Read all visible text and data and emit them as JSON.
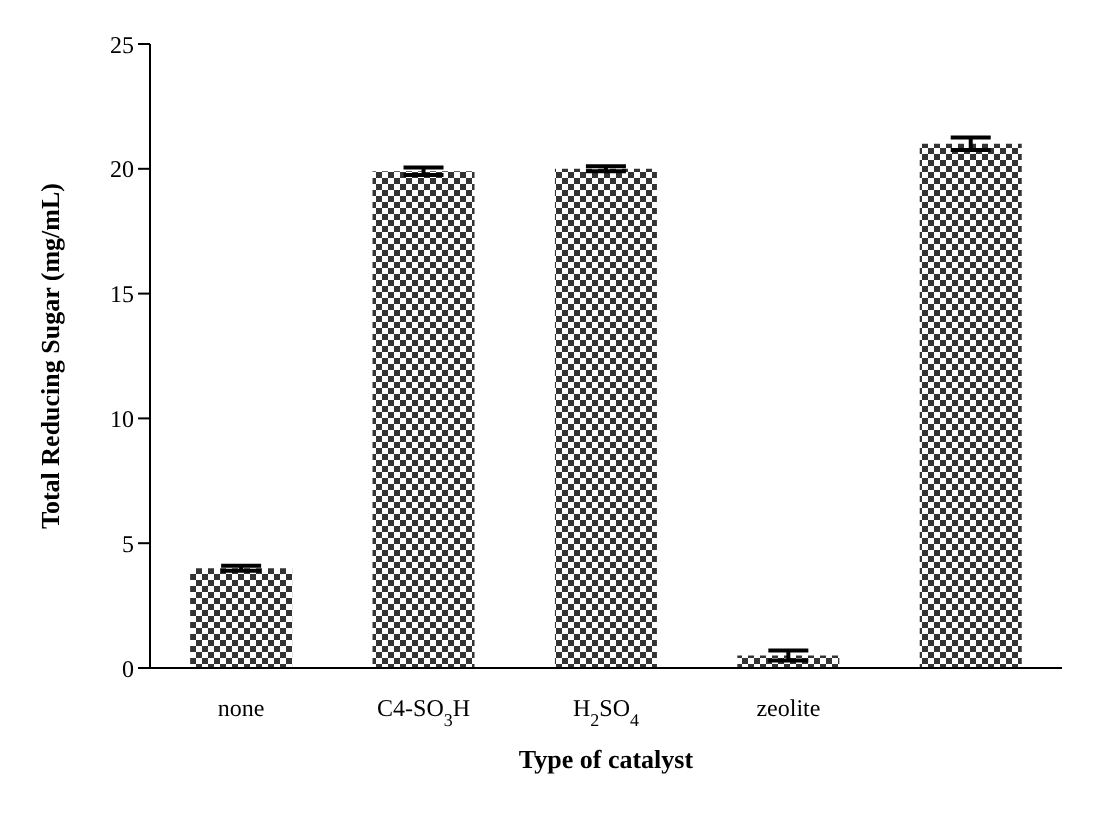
{
  "chart_data": {
    "type": "bar",
    "xlabel": "Type of catalyst",
    "ylabel": "Total Reducing Sugar (mg/mL)",
    "categories": [
      "none",
      "C4-SO$_{3}$H",
      "H$_{2}$SO$_{4}$",
      "zeolite",
      null
    ],
    "values": [
      4.0,
      19.9,
      20.0,
      0.5,
      21.0
    ],
    "errors": [
      0.1,
      0.15,
      0.1,
      0.2,
      0.25
    ],
    "color": "#333333",
    "ylim": [
      0,
      25
    ],
    "yticks": [
      0,
      5,
      10,
      15,
      20,
      25
    ],
    "grid": false
  }
}
